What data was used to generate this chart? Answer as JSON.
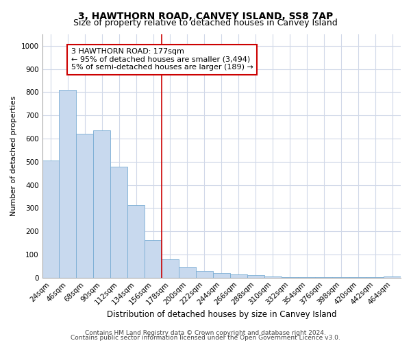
{
  "title": "3, HAWTHORN ROAD, CANVEY ISLAND, SS8 7AP",
  "subtitle": "Size of property relative to detached houses in Canvey Island",
  "xlabel": "Distribution of detached houses by size in Canvey Island",
  "ylabel": "Number of detached properties",
  "bar_color": "#c8d9ee",
  "bar_edge_color": "#7aadd4",
  "categories": [
    "24sqm",
    "46sqm",
    "68sqm",
    "90sqm",
    "112sqm",
    "134sqm",
    "156sqm",
    "178sqm",
    "200sqm",
    "222sqm",
    "244sqm",
    "266sqm",
    "288sqm",
    "310sqm",
    "332sqm",
    "354sqm",
    "376sqm",
    "398sqm",
    "420sqm",
    "442sqm",
    "464sqm"
  ],
  "values": [
    505,
    810,
    620,
    635,
    480,
    313,
    163,
    80,
    48,
    30,
    20,
    13,
    10,
    5,
    3,
    2,
    2,
    2,
    2,
    2,
    5
  ],
  "ylim": [
    0,
    1050
  ],
  "yticks": [
    0,
    100,
    200,
    300,
    400,
    500,
    600,
    700,
    800,
    900,
    1000
  ],
  "vline_index": 7,
  "vline_color": "#cc0000",
  "annotation_text": "3 HAWTHORN ROAD: 177sqm\n← 95% of detached houses are smaller (3,494)\n5% of semi-detached houses are larger (189) →",
  "annotation_box_facecolor": "#ffffff",
  "annotation_box_edgecolor": "#cc0000",
  "footer_line1": "Contains HM Land Registry data © Crown copyright and database right 2024.",
  "footer_line2": "Contains public sector information licensed under the Open Government Licence v3.0.",
  "background_color": "#ffffff",
  "plot_background_color": "#ffffff",
  "grid_color": "#d0d8e8",
  "title_fontsize": 10,
  "subtitle_fontsize": 9,
  "xlabel_fontsize": 8.5,
  "ylabel_fontsize": 8,
  "tick_fontsize": 7.5,
  "annotation_fontsize": 8,
  "footer_fontsize": 6.5
}
